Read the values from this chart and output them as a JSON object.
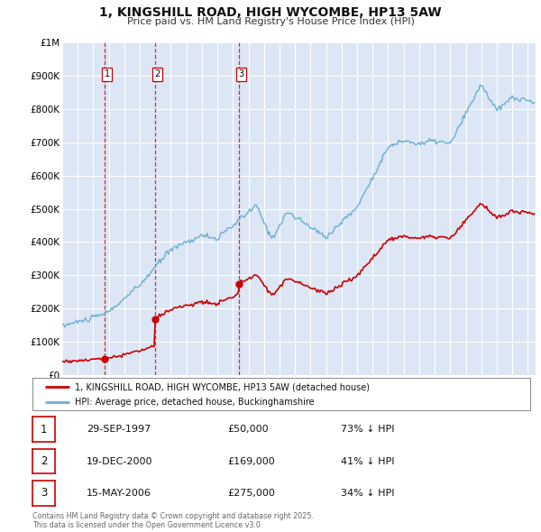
{
  "title": "1, KINGSHILL ROAD, HIGH WYCOMBE, HP13 5AW",
  "subtitle": "Price paid vs. HM Land Registry's House Price Index (HPI)",
  "background_color": "#ffffff",
  "plot_bg_color": "#dce6f5",
  "grid_color": "#ffffff",
  "ylim": [
    0,
    1000000
  ],
  "yticks": [
    0,
    100000,
    200000,
    300000,
    400000,
    500000,
    600000,
    700000,
    800000,
    900000,
    1000000
  ],
  "ytick_labels": [
    "£0",
    "£100K",
    "£200K",
    "£300K",
    "£400K",
    "£500K",
    "£600K",
    "£700K",
    "£800K",
    "£900K",
    "£1M"
  ],
  "hpi_color": "#6baed6",
  "price_color": "#cc0000",
  "vline_color": "#cc0000",
  "purchases": [
    {
      "date_num": 1997.747,
      "price": 50000,
      "label": "1",
      "date_str": "29-SEP-1997"
    },
    {
      "date_num": 2000.963,
      "price": 169000,
      "label": "2",
      "date_str": "19-DEC-2000"
    },
    {
      "date_num": 2006.37,
      "price": 275000,
      "label": "3",
      "date_str": "15-MAY-2006"
    }
  ],
  "legend_entries": [
    "1, KINGSHILL ROAD, HIGH WYCOMBE, HP13 5AW (detached house)",
    "HPI: Average price, detached house, Buckinghamshire"
  ],
  "table_rows": [
    {
      "num": "1",
      "date": "29-SEP-1997",
      "price": "£50,000",
      "hpi": "73% ↓ HPI"
    },
    {
      "num": "2",
      "date": "19-DEC-2000",
      "price": "£169,000",
      "hpi": "41% ↓ HPI"
    },
    {
      "num": "3",
      "date": "15-MAY-2006",
      "price": "£275,000",
      "hpi": "34% ↓ HPI"
    }
  ],
  "footer": "Contains HM Land Registry data © Crown copyright and database right 2025.\nThis data is licensed under the Open Government Licence v3.0.",
  "xmin": 1995.0,
  "xmax": 2025.5
}
